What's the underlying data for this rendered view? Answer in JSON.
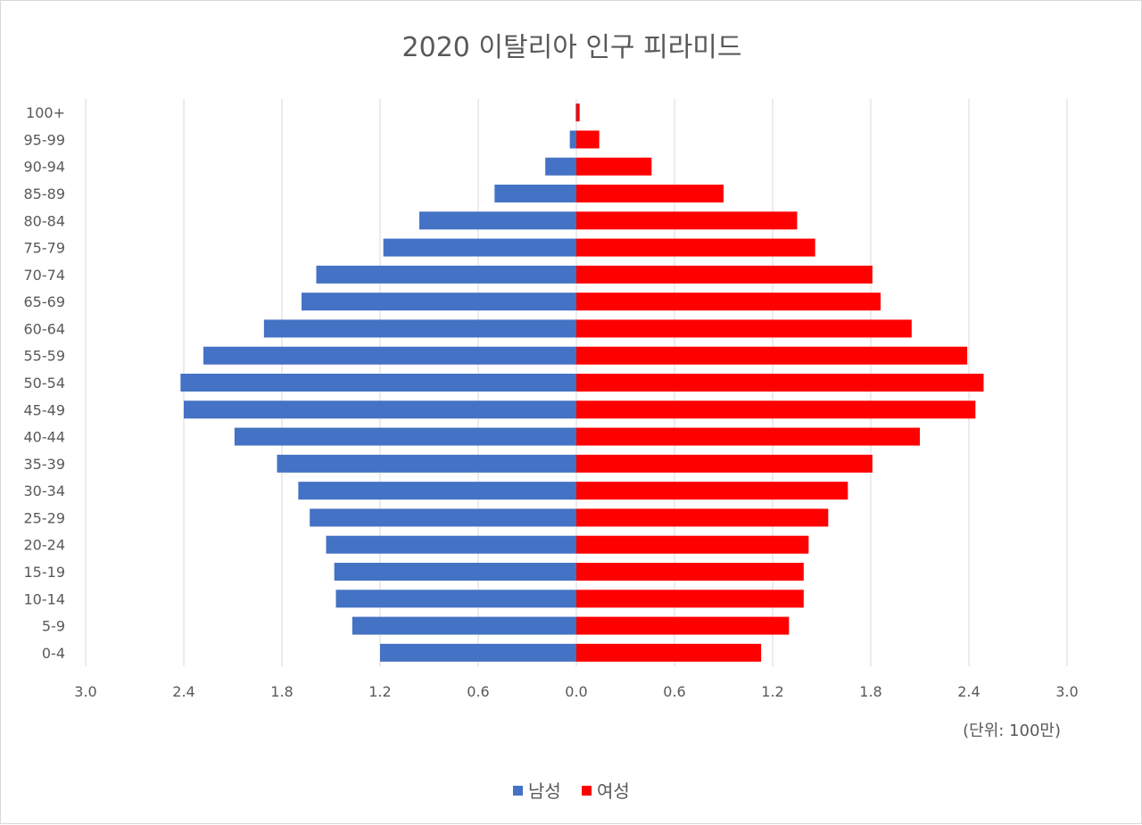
{
  "chart_data": {
    "type": "bar",
    "orientation": "horizontal",
    "title": "2020 이탈리아 인구 피라미드",
    "unit_label": "(단위: 100만)",
    "categories": [
      "0-4",
      "5-9",
      "10-14",
      "15-19",
      "20-24",
      "25-29",
      "30-34",
      "35-39",
      "40-44",
      "45-49",
      "50-54",
      "55-59",
      "60-64",
      "65-69",
      "70-74",
      "75-79",
      "80-84",
      "85-89",
      "90-94",
      "95-99",
      "100+"
    ],
    "series": [
      {
        "name": "남성",
        "color": "#4472c4",
        "direction": "left",
        "values": [
          1.2,
          1.37,
          1.47,
          1.48,
          1.53,
          1.63,
          1.7,
          1.83,
          2.09,
          2.4,
          2.42,
          2.28,
          1.91,
          1.68,
          1.59,
          1.18,
          0.96,
          0.5,
          0.19,
          0.04,
          0.004
        ]
      },
      {
        "name": "여성",
        "color": "#ff0000",
        "direction": "right",
        "values": [
          1.13,
          1.3,
          1.39,
          1.39,
          1.42,
          1.54,
          1.66,
          1.81,
          2.1,
          2.44,
          2.49,
          2.39,
          2.05,
          1.86,
          1.81,
          1.46,
          1.35,
          0.9,
          0.46,
          0.14,
          0.02
        ]
      }
    ],
    "xticks": [
      "3.0",
      "2.4",
      "1.8",
      "1.2",
      "0.6",
      "0.0",
      "0.6",
      "1.2",
      "1.8",
      "2.4",
      "3.0"
    ],
    "xlim": [
      -3.0,
      3.0
    ],
    "grid": "vertical",
    "legend_position": "bottom"
  }
}
